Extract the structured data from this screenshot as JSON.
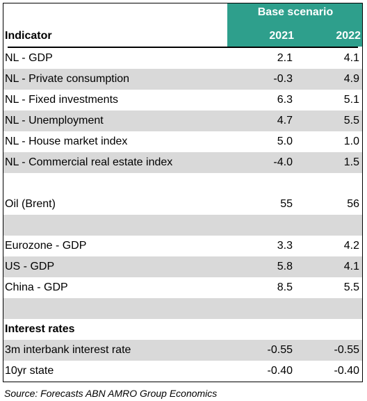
{
  "table": {
    "scenario_title": "Base scenario",
    "indicator_header": "Indicator",
    "years": [
      "2021",
      "2022"
    ],
    "rows": [
      {
        "label": "NL - GDP",
        "v2021": "2.1",
        "v2022": "4.1",
        "shaded": false
      },
      {
        "label": "NL - Private consumption",
        "v2021": "-0.3",
        "v2022": "4.9",
        "shaded": true
      },
      {
        "label": "NL - Fixed investments",
        "v2021": "6.3",
        "v2022": "5.1",
        "shaded": false
      },
      {
        "label": "NL - Unemployment",
        "v2021": "4.7",
        "v2022": "5.5",
        "shaded": true
      },
      {
        "label": "NL - House market index",
        "v2021": "5.0",
        "v2022": "1.0",
        "shaded": false
      },
      {
        "label": "NL - Commercial real estate index",
        "v2021": "-4.0",
        "v2022": "1.5",
        "shaded": true
      },
      {
        "label": "",
        "v2021": "",
        "v2022": "",
        "shaded": false
      },
      {
        "label": "Oil (Brent)",
        "v2021": "55",
        "v2022": "56",
        "shaded": false
      },
      {
        "label": "",
        "v2021": "",
        "v2022": "",
        "shaded": true
      },
      {
        "label": "Eurozone - GDP",
        "v2021": "3.3",
        "v2022": "4.2",
        "shaded": false
      },
      {
        "label": "US - GDP",
        "v2021": "5.8",
        "v2022": "4.1",
        "shaded": true
      },
      {
        "label": "China - GDP",
        "v2021": "8.5",
        "v2022": "5.5",
        "shaded": false
      },
      {
        "label": "",
        "v2021": "",
        "v2022": "",
        "shaded": true
      },
      {
        "label": "Interest rates",
        "v2021": "",
        "v2022": "",
        "shaded": false,
        "bold": true
      },
      {
        "label": "3m interbank interest rate",
        "v2021": "-0.55",
        "v2022": "-0.55",
        "shaded": true
      },
      {
        "label": "10yr state",
        "v2021": "-0.40",
        "v2022": "-0.40",
        "shaded": false
      }
    ]
  },
  "source": "Source: Forecasts ABN AMRO Group Economics",
  "colors": {
    "header_teal": "#2e9f8c",
    "row_shade": "#d9d9d9"
  }
}
